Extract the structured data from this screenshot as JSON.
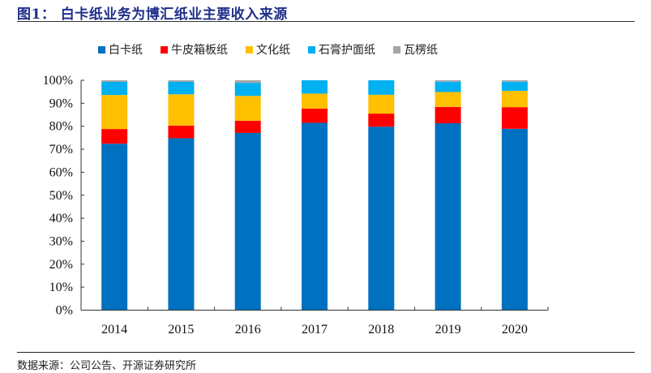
{
  "title": "图1：  白卡纸业务为博汇纸业主要收入来源",
  "source": "数据来源：公司公告、开源证券研究所",
  "chart_data": {
    "type": "bar",
    "stacked": true,
    "title": "图1：  白卡纸业务为博汇纸业主要收入来源",
    "xlabel": "",
    "ylabel": "",
    "ylim": [
      0,
      100
    ],
    "yticks": [
      "0%",
      "10%",
      "20%",
      "30%",
      "40%",
      "50%",
      "60%",
      "70%",
      "80%",
      "90%",
      "100%"
    ],
    "categories": [
      "2014",
      "2015",
      "2016",
      "2017",
      "2018",
      "2019",
      "2020"
    ],
    "legend_position": "top",
    "grid": false,
    "series": [
      {
        "name": "白卡纸",
        "color": "#0070c0",
        "values": [
          72.4,
          74.8,
          77.1,
          81.5,
          79.8,
          81.3,
          78.9
        ]
      },
      {
        "name": "牛皮箱板纸",
        "color": "#ff0000",
        "values": [
          6.4,
          5.5,
          5.3,
          6.2,
          5.7,
          7.1,
          9.4
        ]
      },
      {
        "name": "文化纸",
        "color": "#ffc000",
        "values": [
          14.8,
          13.6,
          10.8,
          6.5,
          8.2,
          6.5,
          7.1
        ]
      },
      {
        "name": "石膏护面纸",
        "color": "#00b0f0",
        "values": [
          5.7,
          5.4,
          5.7,
          5.8,
          6.3,
          4.5,
          4.0
        ]
      },
      {
        "name": "瓦楞纸",
        "color": "#a5a5a5",
        "values": [
          0.7,
          0.7,
          1.1,
          0.0,
          0.0,
          0.6,
          0.6
        ]
      }
    ]
  }
}
